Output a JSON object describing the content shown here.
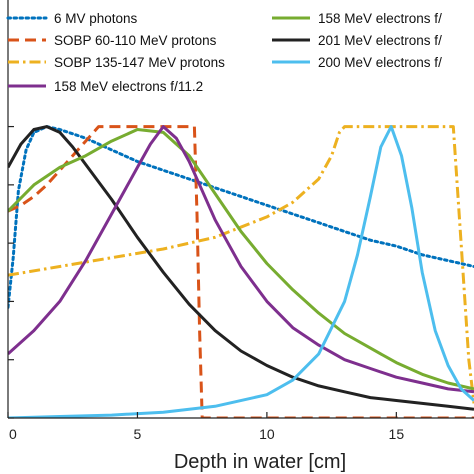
{
  "chart_data": {
    "type": "line",
    "xlabel": "Depth in water [cm]",
    "ylabel": "",
    "xlim": [
      0,
      18
    ],
    "ylim": [
      0,
      1.05
    ],
    "x_ticks": [
      "0",
      "5",
      "10",
      "15"
    ],
    "grid": false,
    "legend": "top, two columns",
    "series": [
      {
        "name": "6 MV photons",
        "color": "#0072BD",
        "style": "dotted",
        "x": [
          0,
          0.2,
          0.4,
          0.7,
          1.0,
          1.5,
          2.0,
          3,
          4,
          5,
          6,
          7,
          8,
          9,
          10,
          11,
          12,
          13,
          14,
          15,
          16,
          17,
          18
        ],
        "y": [
          0.38,
          0.55,
          0.78,
          0.92,
          0.98,
          1.0,
          0.99,
          0.96,
          0.92,
          0.88,
          0.85,
          0.82,
          0.79,
          0.76,
          0.73,
          0.7,
          0.67,
          0.64,
          0.61,
          0.59,
          0.56,
          0.54,
          0.52
        ]
      },
      {
        "name": "SOBP 60-110 MeV protons",
        "color": "#D95319",
        "style": "dashed",
        "x": [
          0,
          0.5,
          1.0,
          1.5,
          2.0,
          2.5,
          3.0,
          3.5,
          4.0,
          7.2,
          7.3,
          7.4,
          7.5,
          18
        ],
        "y": [
          0.71,
          0.73,
          0.76,
          0.8,
          0.85,
          0.9,
          0.95,
          1.0,
          1.0,
          1.0,
          0.7,
          0.3,
          0.0,
          0.0
        ]
      },
      {
        "name": "SOBP 135-147 MeV protons",
        "color": "#EDB120",
        "style": "dashdot",
        "x": [
          0,
          2,
          4,
          6,
          8,
          10,
          11,
          12,
          12.5,
          12.8,
          13,
          17.2,
          17.5,
          17.8,
          18
        ],
        "y": [
          0.49,
          0.52,
          0.55,
          0.58,
          0.62,
          0.69,
          0.74,
          0.82,
          0.9,
          0.98,
          1.0,
          1.0,
          0.6,
          0.2,
          0.05
        ]
      },
      {
        "name": "158 MeV electrons f/11.2",
        "color": "#7E2F8E",
        "style": "solid",
        "x": [
          0,
          1,
          2,
          3,
          4,
          5,
          5.5,
          6,
          6.5,
          7,
          7.5,
          8,
          9,
          10,
          11,
          12,
          13,
          14,
          15,
          16,
          17,
          18
        ],
        "y": [
          0.22,
          0.3,
          0.4,
          0.54,
          0.7,
          0.86,
          0.94,
          1.0,
          0.96,
          0.88,
          0.78,
          0.68,
          0.52,
          0.4,
          0.31,
          0.25,
          0.2,
          0.17,
          0.14,
          0.12,
          0.1,
          0.09
        ]
      },
      {
        "name": "158 MeV electrons f/",
        "color": "#77AC30",
        "style": "solid",
        "x": [
          0,
          1,
          2,
          3,
          4,
          5,
          6,
          7,
          8,
          9,
          10,
          11,
          12,
          13,
          14,
          15,
          16,
          17,
          18
        ],
        "y": [
          0.71,
          0.8,
          0.86,
          0.9,
          0.95,
          0.99,
          0.98,
          0.9,
          0.77,
          0.64,
          0.53,
          0.44,
          0.36,
          0.29,
          0.24,
          0.19,
          0.15,
          0.12,
          0.1
        ]
      },
      {
        "name": "201 MeV electrons f/",
        "color": "#222222",
        "style": "solid",
        "x": [
          0,
          0.5,
          1.0,
          1.5,
          2.0,
          2.5,
          3,
          4,
          5,
          6,
          7,
          8,
          9,
          10,
          11,
          12,
          13,
          14,
          15,
          16,
          17,
          18
        ],
        "y": [
          0.86,
          0.94,
          0.99,
          1.0,
          0.98,
          0.93,
          0.87,
          0.75,
          0.62,
          0.5,
          0.39,
          0.3,
          0.23,
          0.18,
          0.14,
          0.11,
          0.09,
          0.07,
          0.06,
          0.05,
          0.04,
          0.03
        ]
      },
      {
        "name": "200 MeV electrons f/",
        "color": "#4DBEEE",
        "style": "solid",
        "x": [
          0,
          2,
          4,
          6,
          8,
          10,
          11,
          12,
          13,
          13.5,
          14,
          14.4,
          14.8,
          15.2,
          15.6,
          16,
          16.5,
          17,
          17.5,
          18
        ],
        "y": [
          0.0,
          0.005,
          0.01,
          0.02,
          0.04,
          0.08,
          0.13,
          0.22,
          0.4,
          0.56,
          0.76,
          0.93,
          1.0,
          0.9,
          0.72,
          0.5,
          0.3,
          0.18,
          0.1,
          0.06
        ]
      }
    ]
  }
}
